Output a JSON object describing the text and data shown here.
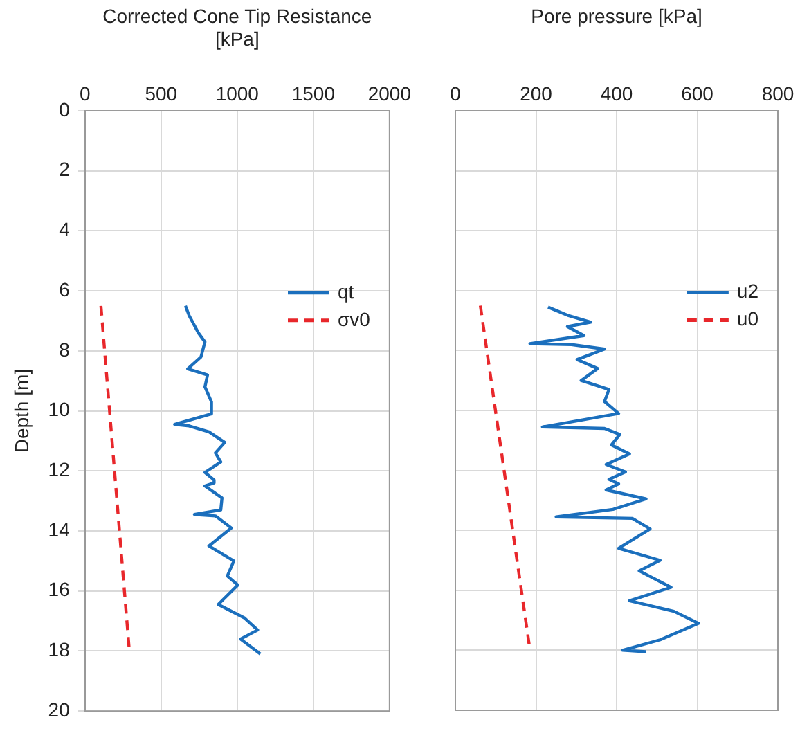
{
  "chart_data": [
    {
      "type": "line",
      "xlabel": "Corrected Cone Tip Resistance [kPa]",
      "ylabel": "Depth [m]",
      "xlim": [
        0,
        2000
      ],
      "xticks": [
        0,
        500,
        1000,
        1500,
        2000
      ],
      "ylim": [
        20,
        0
      ],
      "yticks": [
        0,
        2,
        4,
        6,
        8,
        10,
        12,
        14,
        16,
        18,
        20
      ],
      "grid": true,
      "legend": "right",
      "marker": "none",
      "series": [
        {
          "name": "qt",
          "color": "#1b6fbd",
          "line_style": "solid",
          "x": [
            660,
            684,
            745,
            788,
            762,
            675,
            805,
            788,
            831,
            831,
            589,
            684,
            814,
            918,
            857,
            892,
            788,
            848,
            848,
            788,
            900,
            892,
            719,
            857,
            961,
            814,
            978,
            935,
            1004,
            875,
            1048,
            1134,
            1022,
            1152
          ],
          "values": [
            6.5,
            6.82,
            7.4,
            7.7,
            8.2,
            8.6,
            8.8,
            9.2,
            9.7,
            10.1,
            10.45,
            10.5,
            10.7,
            11.05,
            11.4,
            11.7,
            12.05,
            12.3,
            12.4,
            12.5,
            12.9,
            13.3,
            13.45,
            13.5,
            13.9,
            14.5,
            15.0,
            15.5,
            15.8,
            16.45,
            16.9,
            17.3,
            17.6,
            18.1
          ]
        },
        {
          "name": "σv0",
          "color": "#e8272b",
          "line_style": "dashed",
          "x": [
            105,
            290
          ],
          "values": [
            6.5,
            17.9
          ]
        }
      ]
    },
    {
      "type": "line",
      "xlabel": "Pore pressure [kPa]",
      "xlim": [
        0,
        800
      ],
      "xticks": [
        0,
        200,
        400,
        600,
        800
      ],
      "ylim": [
        20,
        0
      ],
      "yticks": [
        0,
        2,
        4,
        6,
        8,
        10,
        12,
        14,
        16,
        18,
        20
      ],
      "grid": true,
      "legend": "right",
      "marker": "none",
      "tick_labels": "x",
      "series": [
        {
          "name": "u2",
          "color": "#1b6fbd",
          "line_style": "solid",
          "x": [
            230,
            278,
            336,
            278,
            319,
            185,
            288,
            370,
            302,
            353,
            312,
            381,
            370,
            405,
            216,
            370,
            408,
            387,
            432,
            374,
            422,
            381,
            405,
            374,
            473,
            391,
            250,
            439,
            483,
            405,
            508,
            456,
            535,
            432,
            542,
            603,
            508,
            415,
            473
          ],
          "values": [
            6.55,
            6.82,
            7.05,
            7.2,
            7.5,
            7.77,
            7.8,
            7.95,
            8.3,
            8.6,
            9.0,
            9.3,
            9.7,
            10.1,
            10.55,
            10.6,
            10.8,
            11.15,
            11.45,
            11.8,
            12.05,
            12.3,
            12.45,
            12.65,
            12.95,
            13.3,
            13.55,
            13.6,
            13.95,
            14.6,
            15.0,
            15.35,
            15.9,
            16.35,
            16.7,
            17.1,
            17.65,
            18.0,
            18.05
          ]
        },
        {
          "name": "u0",
          "color": "#e8272b",
          "line_style": "dashed",
          "x": [
            62,
            183
          ],
          "values": [
            6.5,
            17.8
          ]
        }
      ]
    }
  ]
}
